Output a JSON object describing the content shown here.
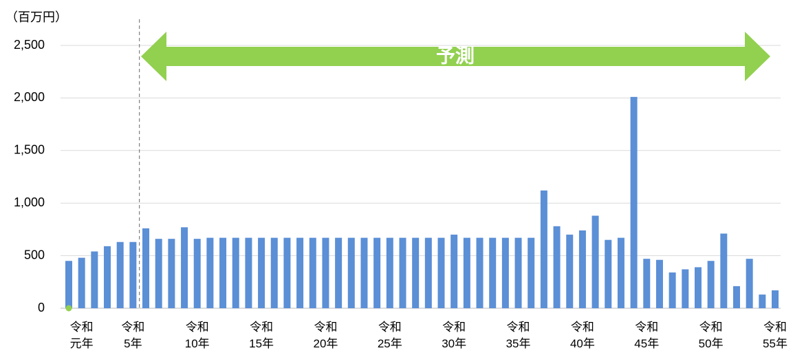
{
  "chart_data": {
    "type": "bar",
    "unit_label": "（百万円）",
    "annotation": "予測",
    "categories": [
      null,
      "令和\n元年",
      null,
      null,
      null,
      "令和\n5年",
      null,
      null,
      null,
      null,
      "令和\n10年",
      null,
      null,
      null,
      null,
      "令和\n15年",
      null,
      null,
      null,
      null,
      "令和\n20年",
      null,
      null,
      null,
      null,
      "令和\n25年",
      null,
      null,
      null,
      null,
      "令和\n30年",
      null,
      null,
      null,
      null,
      "令和\n35年",
      null,
      null,
      null,
      null,
      "令和\n40年",
      null,
      null,
      null,
      null,
      "令和\n45年",
      null,
      null,
      null,
      null,
      "令和\n50年",
      null,
      null,
      null,
      null,
      "令和\n55年"
    ],
    "values": [
      450,
      480,
      540,
      590,
      630,
      630,
      760,
      660,
      660,
      770,
      660,
      670,
      670,
      670,
      670,
      670,
      670,
      670,
      670,
      670,
      670,
      670,
      670,
      670,
      670,
      670,
      670,
      670,
      670,
      670,
      700,
      670,
      670,
      670,
      670,
      670,
      670,
      1120,
      780,
      700,
      740,
      880,
      650,
      670,
      2010,
      470,
      460,
      340,
      370,
      390,
      450,
      710,
      210,
      470,
      130,
      170
    ],
    "color": "#5b8fd6",
    "annotation_color": "#92d050",
    "ylim": [
      0,
      2500
    ],
    "yticks": [
      0,
      500,
      {
        "value": 1000,
        "label": "1,000"
      },
      {
        "value": 1500,
        "label": "1,500"
      },
      {
        "value": 2000,
        "label": "2,000"
      },
      {
        "value": 2500,
        "label": "2,500"
      }
    ],
    "grid": true
  }
}
